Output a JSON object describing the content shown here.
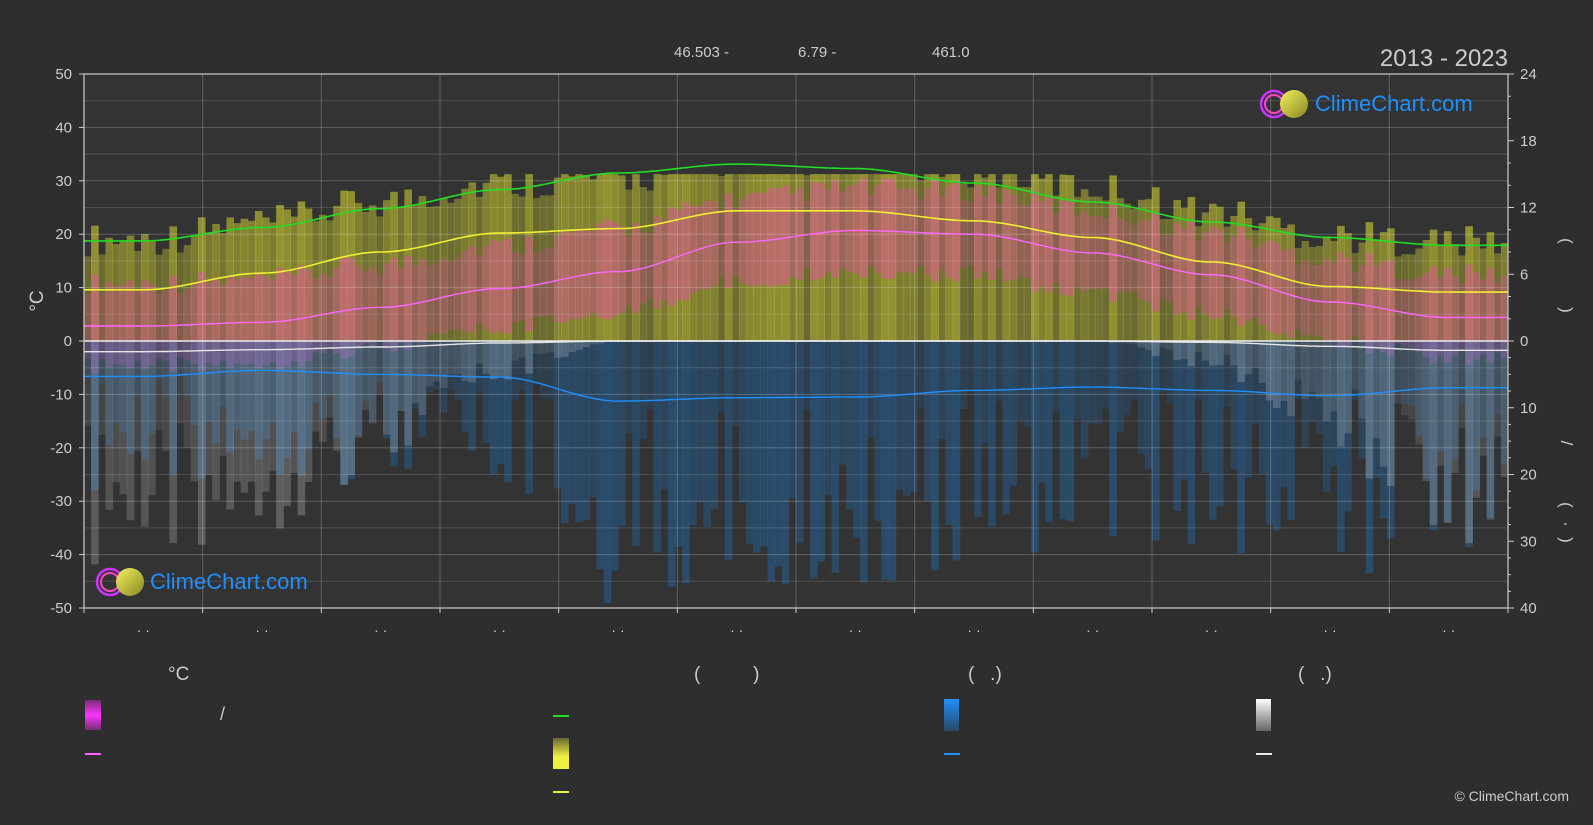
{
  "header": {
    "lat": "46.503 -",
    "lon": "6.79 -",
    "elev": "461.0",
    "period": "2013 - 2023"
  },
  "brand": {
    "name": "ClimeChart.com",
    "copyright": "© ClimeChart.com",
    "color": "#1e90ff"
  },
  "chart_data": {
    "type": "line",
    "left_axis": {
      "label": "°C",
      "range": [
        -50,
        50
      ],
      "ticks": [
        "50",
        "40",
        "30",
        "20",
        "10",
        "0",
        "-10",
        "-20",
        "-30",
        "-40",
        "-50"
      ]
    },
    "right_axis_top": {
      "range": [
        0,
        24
      ],
      "ticks": [
        "24",
        "18",
        "12",
        "6",
        "0"
      ]
    },
    "right_axis_bottom": {
      "range": [
        0,
        40
      ],
      "ticks": [
        "10",
        "20",
        "30",
        "40"
      ]
    },
    "right_axis_label_fragments": [
      "(",
      ")",
      "/",
      "(",
      "·",
      ")"
    ],
    "x_tick_labels": [
      "· ·",
      "· ·",
      "· ·",
      "· ·",
      "· ·",
      "· ·",
      "· ·",
      "· ·",
      "· ·",
      "· ·",
      "· ·",
      "· ·"
    ],
    "months_count": 12,
    "grid": true,
    "series": [
      {
        "key": "daylight",
        "color": "#22dd22",
        "axis": "right_top",
        "values": [
          9.0,
          10.2,
          11.9,
          13.6,
          15.1,
          15.9,
          15.5,
          14.2,
          12.5,
          10.7,
          9.3,
          8.6
        ]
      },
      {
        "key": "sunshine",
        "color": "#f0f030",
        "axis": "right_top",
        "values": [
          4.6,
          6.1,
          8.0,
          9.7,
          10.1,
          11.7,
          11.7,
          10.8,
          9.3,
          7.1,
          4.9,
          4.4
        ]
      },
      {
        "key": "max_temp",
        "color": "#ff66ff",
        "axis": "left",
        "values": [
          2.8,
          3.5,
          6.3,
          9.8,
          13.0,
          18.5,
          20.7,
          20.0,
          16.5,
          12.4,
          7.3,
          4.4
        ]
      },
      {
        "key": "rain",
        "color": "#1e90ff",
        "axis": "right_bottom",
        "values": [
          5.3,
          4.4,
          5.0,
          5.4,
          9.0,
          8.5,
          8.4,
          7.4,
          6.9,
          7.4,
          8.2,
          7.0
        ]
      },
      {
        "key": "snow",
        "color": "#e6e6e6",
        "axis": "right_bottom",
        "values": [
          1.6,
          1.3,
          0.9,
          0.3,
          0.0,
          0.0,
          0.0,
          0.0,
          0.0,
          0.2,
          0.8,
          1.4
        ]
      }
    ],
    "bands": {
      "temp_range": {
        "color": "#ff33cc",
        "min_c": 4,
        "max_c": 30
      },
      "sunshine_fill": {
        "color": "#c8c832",
        "max_h": 15
      },
      "rain_bars": {
        "color": "#1e6fb8"
      },
      "snow_bars": {
        "color": "#bbbbbb"
      }
    }
  },
  "legend": {
    "col1_header": "°C",
    "col2_header": "(          )",
    "col3_header": "(   .)",
    "col4_header": "(   .)",
    "slash": "/"
  }
}
